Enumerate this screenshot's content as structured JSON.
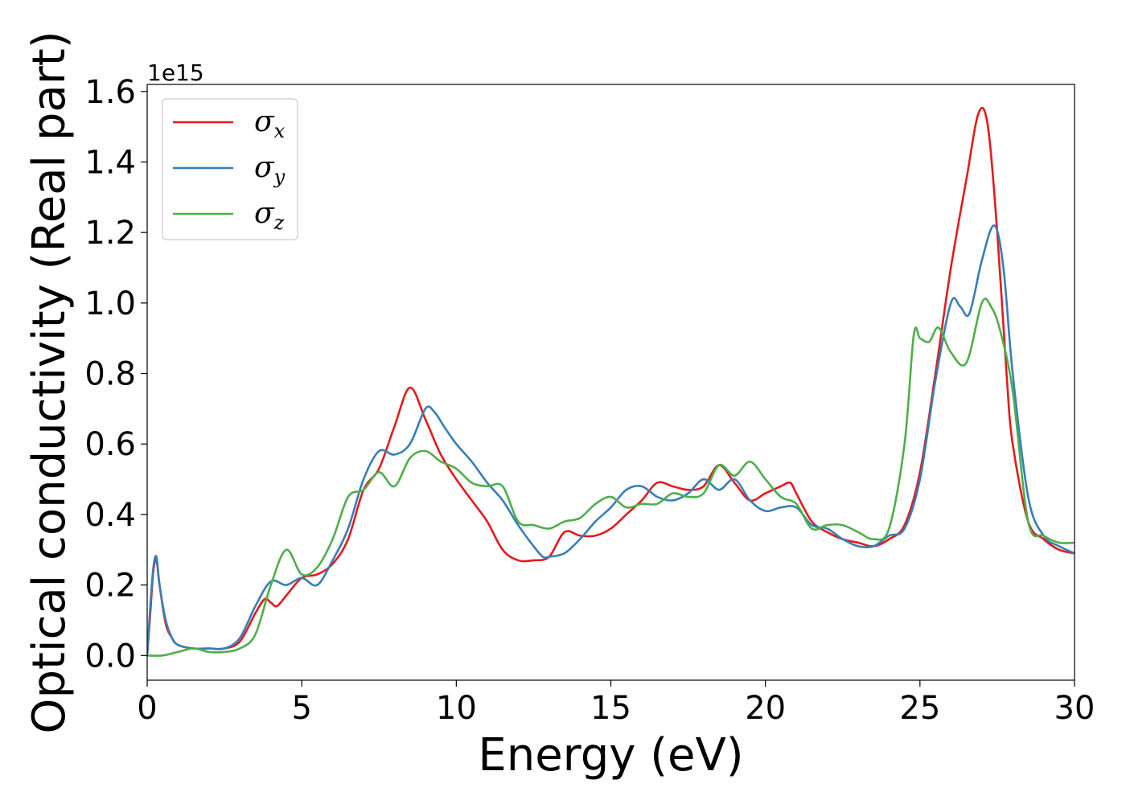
{
  "chart_data": {
    "type": "line",
    "xlabel": "Energy (eV)",
    "ylabel": "Optical conductivity (Real part)",
    "y_offset_label": "1e15",
    "xlim": [
      0,
      30
    ],
    "ylim": [
      -0.07,
      1.62
    ],
    "xticks": [
      0,
      5,
      10,
      15,
      20,
      25,
      30
    ],
    "xtick_labels": [
      "0",
      "5",
      "10",
      "15",
      "20",
      "25",
      "30"
    ],
    "yticks": [
      0.0,
      0.2,
      0.4,
      0.6,
      0.8,
      1.0,
      1.2,
      1.4,
      1.6
    ],
    "ytick_labels": [
      "0.0",
      "0.2",
      "0.4",
      "0.6",
      "0.8",
      "1.0",
      "1.2",
      "1.4",
      "1.6"
    ],
    "grid": false,
    "legend_position": "top-left",
    "series": [
      {
        "name_base": "σ",
        "name_sub": "x",
        "color": "#e41a1c",
        "x": [
          0,
          0.1,
          0.2,
          0.3,
          0.4,
          0.6,
          0.8,
          1.0,
          1.5,
          2.0,
          2.5,
          3.0,
          3.5,
          3.8,
          4.0,
          4.2,
          4.5,
          5.0,
          5.5,
          6.0,
          6.5,
          7.0,
          7.5,
          8.0,
          8.5,
          9.0,
          9.5,
          10.0,
          10.5,
          11.0,
          11.5,
          12.0,
          12.5,
          13.0,
          13.5,
          14.0,
          14.5,
          15.0,
          15.5,
          16.0,
          16.5,
          17.0,
          17.5,
          18.0,
          18.5,
          19.0,
          19.5,
          20.0,
          20.5,
          20.8,
          21.0,
          21.5,
          22.0,
          22.5,
          23.0,
          23.5,
          24.0,
          24.5,
          25.0,
          25.5,
          26.0,
          26.5,
          26.9,
          27.2,
          27.5,
          27.8,
          28.0,
          28.5,
          29.0,
          29.5,
          30.0
        ],
        "y": [
          0.0,
          0.12,
          0.24,
          0.27,
          0.2,
          0.09,
          0.05,
          0.03,
          0.02,
          0.02,
          0.02,
          0.04,
          0.12,
          0.16,
          0.15,
          0.14,
          0.17,
          0.22,
          0.23,
          0.26,
          0.33,
          0.47,
          0.53,
          0.65,
          0.76,
          0.67,
          0.57,
          0.5,
          0.44,
          0.38,
          0.3,
          0.27,
          0.27,
          0.28,
          0.35,
          0.34,
          0.34,
          0.36,
          0.4,
          0.44,
          0.49,
          0.48,
          0.47,
          0.48,
          0.54,
          0.49,
          0.44,
          0.46,
          0.48,
          0.49,
          0.46,
          0.38,
          0.35,
          0.33,
          0.32,
          0.31,
          0.33,
          0.37,
          0.52,
          0.8,
          1.1,
          1.35,
          1.54,
          1.5,
          1.2,
          0.8,
          0.6,
          0.38,
          0.33,
          0.3,
          0.29
        ]
      },
      {
        "name_base": "σ",
        "name_sub": "y",
        "color": "#377eb8",
        "x": [
          0,
          0.1,
          0.2,
          0.3,
          0.4,
          0.6,
          0.8,
          1.0,
          1.5,
          2.0,
          2.5,
          3.0,
          3.5,
          4.0,
          4.5,
          5.0,
          5.5,
          6.0,
          6.5,
          7.0,
          7.5,
          8.0,
          8.5,
          9.0,
          9.3,
          9.6,
          10.0,
          10.5,
          11.0,
          11.5,
          12.0,
          12.5,
          12.8,
          13.0,
          13.5,
          14.0,
          14.5,
          15.0,
          15.5,
          16.0,
          16.5,
          17.0,
          17.5,
          18.0,
          18.5,
          19.0,
          19.5,
          20.0,
          20.5,
          21.0,
          21.5,
          22.0,
          22.5,
          23.0,
          23.5,
          24.0,
          24.5,
          25.0,
          25.5,
          26.0,
          26.3,
          26.6,
          27.0,
          27.4,
          27.7,
          28.0,
          28.5,
          29.0,
          29.5,
          30.0
        ],
        "y": [
          0.0,
          0.14,
          0.25,
          0.28,
          0.2,
          0.1,
          0.05,
          0.03,
          0.02,
          0.02,
          0.02,
          0.05,
          0.14,
          0.21,
          0.2,
          0.22,
          0.2,
          0.27,
          0.36,
          0.5,
          0.58,
          0.57,
          0.6,
          0.7,
          0.69,
          0.65,
          0.6,
          0.55,
          0.49,
          0.44,
          0.37,
          0.31,
          0.28,
          0.28,
          0.29,
          0.33,
          0.38,
          0.42,
          0.47,
          0.48,
          0.45,
          0.44,
          0.46,
          0.5,
          0.47,
          0.5,
          0.44,
          0.41,
          0.42,
          0.42,
          0.37,
          0.36,
          0.33,
          0.31,
          0.31,
          0.34,
          0.36,
          0.5,
          0.78,
          1.0,
          0.99,
          0.97,
          1.12,
          1.22,
          1.1,
          0.8,
          0.45,
          0.34,
          0.31,
          0.29
        ]
      },
      {
        "name_base": "σ",
        "name_sub": "z",
        "color": "#4daf4a",
        "x": [
          0,
          0.5,
          1.0,
          1.5,
          2.0,
          2.5,
          3.0,
          3.5,
          4.0,
          4.5,
          5.0,
          5.5,
          6.0,
          6.5,
          7.0,
          7.5,
          8.0,
          8.5,
          9.0,
          9.5,
          10.0,
          10.5,
          11.0,
          11.5,
          12.0,
          12.5,
          13.0,
          13.5,
          14.0,
          14.5,
          15.0,
          15.5,
          16.0,
          16.5,
          17.0,
          17.5,
          18.0,
          18.5,
          19.0,
          19.5,
          20.0,
          20.5,
          21.0,
          21.5,
          22.0,
          22.5,
          23.0,
          23.5,
          24.0,
          24.5,
          24.8,
          25.0,
          25.3,
          25.6,
          26.0,
          26.5,
          27.0,
          27.3,
          27.6,
          28.0,
          28.5,
          29.0,
          29.5,
          30.0
        ],
        "y": [
          0.0,
          0.0,
          0.01,
          0.02,
          0.01,
          0.01,
          0.02,
          0.06,
          0.2,
          0.3,
          0.23,
          0.25,
          0.33,
          0.45,
          0.47,
          0.52,
          0.48,
          0.56,
          0.58,
          0.55,
          0.53,
          0.49,
          0.48,
          0.48,
          0.38,
          0.37,
          0.36,
          0.38,
          0.39,
          0.43,
          0.45,
          0.42,
          0.43,
          0.43,
          0.46,
          0.45,
          0.46,
          0.54,
          0.51,
          0.55,
          0.5,
          0.45,
          0.43,
          0.36,
          0.37,
          0.37,
          0.35,
          0.33,
          0.36,
          0.6,
          0.91,
          0.9,
          0.89,
          0.93,
          0.86,
          0.83,
          1.0,
          0.99,
          0.92,
          0.75,
          0.38,
          0.34,
          0.32,
          0.32
        ]
      }
    ]
  }
}
